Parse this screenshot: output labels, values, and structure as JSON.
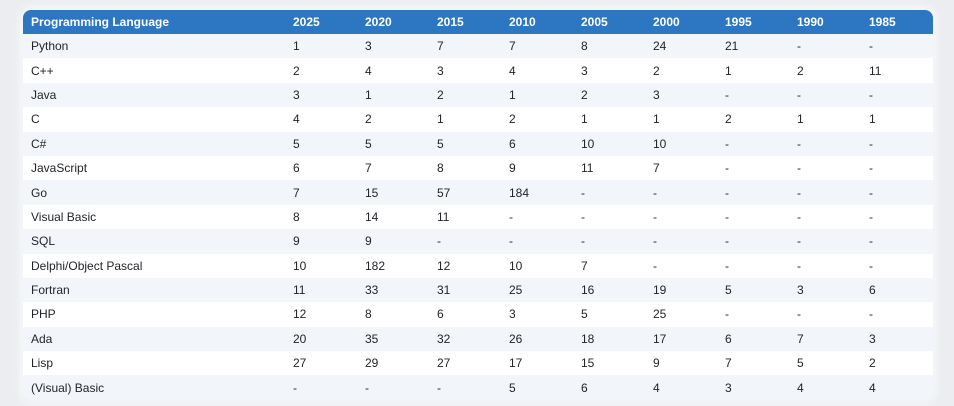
{
  "colors": {
    "page_bg": "#ebedf0",
    "header_bg": "#2d77c2",
    "header_fg": "#ffffff",
    "stripe_bg": "#f2f6fb",
    "row_bg": "#ffffff",
    "cell_fg": "#212529"
  },
  "table": {
    "columns": [
      "Programming Language",
      "2025",
      "2020",
      "2015",
      "2010",
      "2005",
      "2000",
      "1995",
      "1990",
      "1985"
    ],
    "rows": [
      {
        "language": "Python",
        "ranks": [
          "1",
          "3",
          "7",
          "7",
          "8",
          "24",
          "21",
          "-",
          "-"
        ]
      },
      {
        "language": "C++",
        "ranks": [
          "2",
          "4",
          "3",
          "4",
          "3",
          "2",
          "1",
          "2",
          "11"
        ]
      },
      {
        "language": "Java",
        "ranks": [
          "3",
          "1",
          "2",
          "1",
          "2",
          "3",
          "-",
          "-",
          "-"
        ]
      },
      {
        "language": "C",
        "ranks": [
          "4",
          "2",
          "1",
          "2",
          "1",
          "1",
          "2",
          "1",
          "1"
        ]
      },
      {
        "language": "C#",
        "ranks": [
          "5",
          "5",
          "5",
          "6",
          "10",
          "10",
          "-",
          "-",
          "-"
        ]
      },
      {
        "language": "JavaScript",
        "ranks": [
          "6",
          "7",
          "8",
          "9",
          "11",
          "7",
          "-",
          "-",
          "-"
        ]
      },
      {
        "language": "Go",
        "ranks": [
          "7",
          "15",
          "57",
          "184",
          "-",
          "-",
          "-",
          "-",
          "-"
        ]
      },
      {
        "language": "Visual Basic",
        "ranks": [
          "8",
          "14",
          "11",
          "-",
          "-",
          "-",
          "-",
          "-",
          "-"
        ]
      },
      {
        "language": "SQL",
        "ranks": [
          "9",
          "9",
          "-",
          "-",
          "-",
          "-",
          "-",
          "-",
          "-"
        ]
      },
      {
        "language": "Delphi/Object Pascal",
        "ranks": [
          "10",
          "182",
          "12",
          "10",
          "7",
          "-",
          "-",
          "-",
          "-"
        ]
      },
      {
        "language": "Fortran",
        "ranks": [
          "11",
          "33",
          "31",
          "25",
          "16",
          "19",
          "5",
          "3",
          "6"
        ]
      },
      {
        "language": "PHP",
        "ranks": [
          "12",
          "8",
          "6",
          "3",
          "5",
          "25",
          "-",
          "-",
          "-"
        ]
      },
      {
        "language": "Ada",
        "ranks": [
          "20",
          "35",
          "32",
          "26",
          "18",
          "17",
          "6",
          "7",
          "3"
        ]
      },
      {
        "language": "Lisp",
        "ranks": [
          "27",
          "29",
          "27",
          "17",
          "15",
          "9",
          "7",
          "5",
          "2"
        ]
      },
      {
        "language": "(Visual) Basic",
        "ranks": [
          "-",
          "-",
          "-",
          "5",
          "6",
          "4",
          "3",
          "4",
          "4"
        ]
      }
    ]
  }
}
